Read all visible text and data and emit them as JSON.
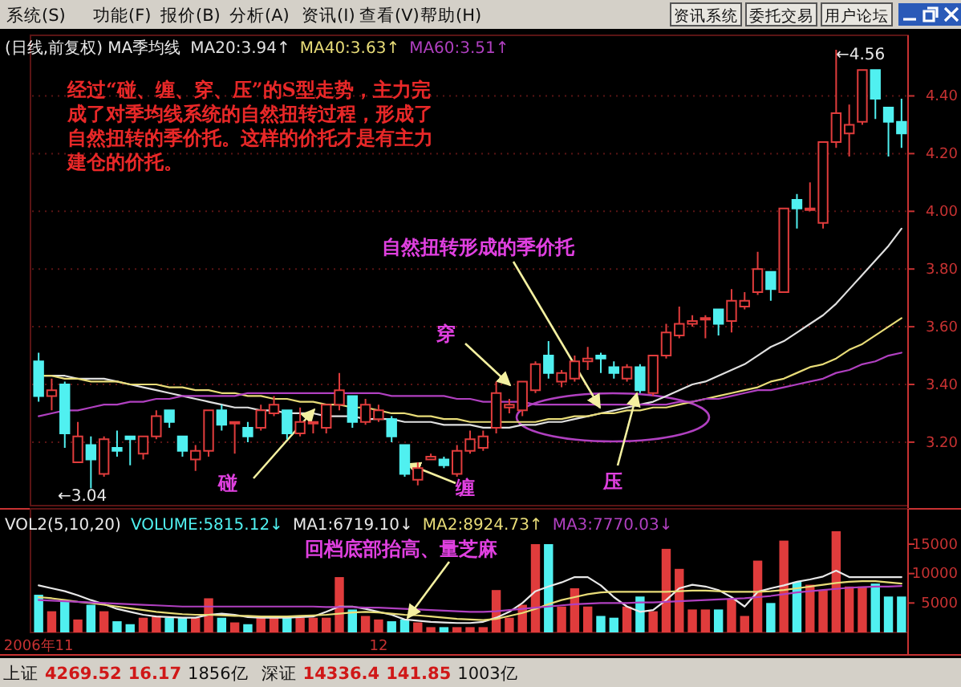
{
  "chart_data": [
    {
      "type": "other",
      "annotations": [
        "系统(S)",
        "功能(F)",
        "报价(B)",
        "分析(A)",
        "资讯(I)",
        "查看(V)",
        "帮助(H)",
        "资讯系统",
        "委托交易",
        "用户论坛"
      ]
    },
    {
      "type": "candlestick",
      "subtitle": "(日线,前复权) MA季均线",
      "legend": "top left",
      "grid": "y",
      "tick_labels": "y",
      "categories": [
        null,
        null,
        null,
        null,
        null,
        null,
        null,
        null,
        null,
        null,
        null,
        null,
        null,
        null,
        null,
        null,
        null,
        null,
        null,
        null,
        null,
        null,
        null,
        null,
        null,
        null,
        null,
        null,
        null,
        null,
        null,
        null,
        null,
        null,
        null,
        null,
        null,
        null,
        null,
        null,
        null,
        null,
        null,
        null,
        null,
        null,
        null,
        null,
        null,
        null,
        null,
        null,
        null,
        null,
        null,
        null,
        null,
        null,
        null,
        null,
        null,
        null,
        null,
        null,
        null,
        null,
        null
      ],
      "ohlc": [
        [
          3.48,
          3.51,
          3.34,
          3.36
        ],
        [
          3.36,
          3.42,
          3.31,
          3.38
        ],
        [
          3.4,
          3.41,
          3.18,
          3.23
        ],
        [
          3.13,
          3.27,
          3.13,
          3.22
        ],
        [
          3.19,
          3.22,
          3.04,
          3.14
        ],
        [
          3.09,
          3.22,
          3.08,
          3.21
        ],
        [
          3.18,
          3.24,
          3.15,
          3.17
        ],
        [
          3.22,
          3.22,
          3.12,
          3.21
        ],
        [
          3.16,
          3.22,
          3.14,
          3.22
        ],
        [
          3.22,
          3.31,
          3.21,
          3.29
        ],
        [
          3.31,
          3.31,
          3.25,
          3.27
        ],
        [
          3.22,
          3.22,
          3.15,
          3.17
        ],
        [
          3.14,
          3.19,
          3.1,
          3.17
        ],
        [
          3.17,
          3.31,
          3.15,
          3.31
        ],
        [
          3.31,
          3.33,
          3.24,
          3.26
        ],
        [
          3.27,
          3.27,
          3.16,
          3.27
        ],
        [
          3.25,
          3.27,
          3.2,
          3.22
        ],
        [
          3.25,
          3.33,
          3.24,
          3.31
        ],
        [
          3.3,
          3.36,
          3.29,
          3.33
        ],
        [
          3.31,
          3.31,
          3.21,
          3.23
        ],
        [
          3.23,
          3.32,
          3.22,
          3.27
        ],
        [
          3.27,
          3.27,
          3.23,
          3.27
        ],
        [
          3.25,
          3.33,
          3.23,
          3.33
        ],
        [
          3.33,
          3.44,
          3.31,
          3.38
        ],
        [
          3.36,
          3.36,
          3.25,
          3.27
        ],
        [
          3.27,
          3.35,
          3.26,
          3.33
        ],
        [
          3.28,
          3.33,
          3.27,
          3.31
        ],
        [
          3.28,
          3.29,
          3.2,
          3.22
        ],
        [
          3.19,
          3.19,
          3.08,
          3.09
        ],
        [
          3.07,
          3.13,
          3.05,
          3.11
        ],
        [
          3.14,
          3.16,
          3.14,
          3.15
        ],
        [
          3.14,
          3.15,
          3.11,
          3.12
        ],
        [
          3.09,
          3.19,
          3.08,
          3.17
        ],
        [
          3.17,
          3.24,
          3.16,
          3.21
        ],
        [
          3.18,
          3.24,
          3.17,
          3.22
        ],
        [
          3.25,
          3.41,
          3.23,
          3.37
        ],
        [
          3.32,
          3.35,
          3.3,
          3.33
        ],
        [
          3.31,
          3.41,
          3.29,
          3.41
        ],
        [
          3.38,
          3.48,
          3.37,
          3.47
        ],
        [
          3.5,
          3.55,
          3.42,
          3.44
        ],
        [
          3.41,
          3.45,
          3.39,
          3.44
        ],
        [
          3.42,
          3.5,
          3.41,
          3.48
        ],
        [
          3.48,
          3.53,
          3.45,
          3.49
        ],
        [
          3.5,
          3.51,
          3.44,
          3.49
        ],
        [
          3.46,
          3.48,
          3.42,
          3.44
        ],
        [
          3.42,
          3.47,
          3.41,
          3.46
        ],
        [
          3.46,
          3.47,
          3.37,
          3.38
        ],
        [
          3.37,
          3.5,
          3.36,
          3.5
        ],
        [
          3.5,
          3.61,
          3.49,
          3.58
        ],
        [
          3.57,
          3.67,
          3.56,
          3.61
        ],
        [
          3.61,
          3.64,
          3.6,
          3.62
        ],
        [
          3.63,
          3.64,
          3.56,
          3.63
        ],
        [
          3.66,
          3.66,
          3.57,
          3.61
        ],
        [
          3.62,
          3.73,
          3.58,
          3.69
        ],
        [
          3.67,
          3.72,
          3.66,
          3.69
        ],
        [
          3.72,
          3.86,
          3.71,
          3.8
        ],
        [
          3.79,
          3.79,
          3.69,
          3.73
        ],
        [
          3.72,
          4.01,
          3.72,
          4.01
        ],
        [
          4.04,
          4.06,
          3.94,
          4.01
        ],
        [
          4.01,
          4.1,
          4.0,
          4.01
        ],
        [
          3.96,
          4.24,
          3.94,
          4.24
        ],
        [
          4.24,
          4.56,
          4.22,
          4.34
        ],
        [
          4.27,
          4.37,
          4.19,
          4.3
        ],
        [
          4.31,
          4.49,
          4.3,
          4.49
        ],
        [
          4.49,
          4.49,
          4.32,
          4.39
        ],
        [
          4.36,
          4.36,
          4.19,
          4.31
        ],
        [
          4.31,
          4.39,
          4.22,
          4.27
        ]
      ],
      "colors": [
        "#50f0f0",
        "#e03c3c",
        "#50f0f0",
        "#e03c3c",
        "#50f0f0",
        "#e03c3c",
        "#50f0f0",
        "#50f0f0",
        "#e03c3c",
        "#e03c3c",
        "#50f0f0",
        "#50f0f0",
        "#e03c3c",
        "#e03c3c",
        "#50f0f0",
        "#e03c3c",
        "#50f0f0",
        "#e03c3c",
        "#e03c3c",
        "#50f0f0",
        "#e03c3c",
        "#e03c3c",
        "#e03c3c",
        "#e03c3c",
        "#50f0f0",
        "#e03c3c",
        "#e03c3c",
        "#50f0f0",
        "#50f0f0",
        "#e03c3c",
        "#e03c3c",
        "#50f0f0",
        "#e03c3c",
        "#e03c3c",
        "#e03c3c",
        "#e03c3c",
        "#e03c3c",
        "#e03c3c",
        "#e03c3c",
        "#50f0f0",
        "#e03c3c",
        "#e03c3c",
        "#e03c3c",
        "#50f0f0",
        "#50f0f0",
        "#e03c3c",
        "#50f0f0",
        "#e03c3c",
        "#e03c3c",
        "#e03c3c",
        "#e03c3c",
        "#e03c3c",
        "#50f0f0",
        "#e03c3c",
        "#e03c3c",
        "#e03c3c",
        "#50f0f0",
        "#e03c3c",
        "#50f0f0",
        "#e03c3c",
        "#e03c3c",
        "#e03c3c",
        "#e03c3c",
        "#e03c3c",
        "#50f0f0",
        "#50f0f0",
        "#50f0f0"
      ],
      "series": [
        {
          "name": "MA20:3.94↑",
          "type": "line",
          "color": "#e0e0e0",
          "values": [
            3.43,
            3.43,
            3.43,
            3.42,
            3.42,
            3.42,
            3.41,
            3.4,
            3.39,
            3.38,
            3.37,
            3.36,
            3.35,
            3.34,
            3.33,
            3.32,
            3.32,
            3.31,
            3.31,
            3.3,
            3.3,
            3.3,
            3.29,
            3.29,
            3.29,
            3.28,
            3.28,
            3.28,
            3.27,
            3.27,
            3.27,
            3.26,
            3.26,
            3.26,
            3.25,
            3.25,
            3.25,
            3.26,
            3.26,
            3.27,
            3.27,
            3.28,
            3.29,
            3.3,
            3.31,
            3.32,
            3.33,
            3.34,
            3.36,
            3.38,
            3.4,
            3.41,
            3.43,
            3.45,
            3.47,
            3.5,
            3.53,
            3.55,
            3.58,
            3.61,
            3.64,
            3.68,
            3.73,
            3.78,
            3.83,
            3.88,
            3.94
          ]
        },
        {
          "name": "MA40:3.63↑",
          "type": "line",
          "color": "#e8dc78",
          "values": [
            3.43,
            3.43,
            3.42,
            3.42,
            3.41,
            3.41,
            3.41,
            3.4,
            3.4,
            3.4,
            3.39,
            3.39,
            3.38,
            3.38,
            3.37,
            3.37,
            3.36,
            3.36,
            3.35,
            3.35,
            3.34,
            3.34,
            3.33,
            3.33,
            3.32,
            3.32,
            3.31,
            3.3,
            3.3,
            3.29,
            3.29,
            3.28,
            3.28,
            3.27,
            3.27,
            3.27,
            3.27,
            3.27,
            3.27,
            3.28,
            3.28,
            3.29,
            3.29,
            3.3,
            3.3,
            3.31,
            3.31,
            3.32,
            3.32,
            3.33,
            3.34,
            3.35,
            3.36,
            3.37,
            3.38,
            3.39,
            3.41,
            3.42,
            3.44,
            3.46,
            3.47,
            3.49,
            3.52,
            3.54,
            3.57,
            3.6,
            3.63
          ]
        },
        {
          "name": "MA60:3.51↑",
          "type": "line",
          "color": "#b040c0",
          "values": [
            3.29,
            3.3,
            3.31,
            3.31,
            3.32,
            3.33,
            3.33,
            3.34,
            3.34,
            3.35,
            3.35,
            3.36,
            3.36,
            3.36,
            3.36,
            3.36,
            3.37,
            3.37,
            3.37,
            3.37,
            3.37,
            3.37,
            3.37,
            3.37,
            3.37,
            3.37,
            3.37,
            3.36,
            3.36,
            3.36,
            3.36,
            3.36,
            3.35,
            3.35,
            3.34,
            3.34,
            3.34,
            3.34,
            3.33,
            3.33,
            3.33,
            3.33,
            3.33,
            3.33,
            3.33,
            3.33,
            3.33,
            3.33,
            3.33,
            3.34,
            3.34,
            3.35,
            3.35,
            3.36,
            3.37,
            3.38,
            3.38,
            3.39,
            3.4,
            3.41,
            3.42,
            3.44,
            3.45,
            3.47,
            3.48,
            3.5,
            3.51
          ]
        }
      ],
      "ylim": [
        2.98,
        4.61
      ],
      "yticks": [
        {
          "value": 3.2,
          "label": "3.20"
        },
        {
          "value": 3.4,
          "label": "3.40"
        },
        {
          "value": 3.6,
          "label": "3.60"
        },
        {
          "value": 3.8,
          "label": "3.80"
        },
        {
          "value": 4.0,
          "label": "4.00"
        },
        {
          "value": 4.2,
          "label": "4.20"
        },
        {
          "value": 4.4,
          "label": "4.40"
        }
      ],
      "annotations": [
        "经过“碰、缠、穿、压”的S型走势，主力完成了对季均线系统的自然扭转过程，形成了自然扭转的季价托。这样的价托才是有主力建仓的价托。",
        "自然扭转形成的季价托",
        "穿",
        "碰",
        "缠",
        "压",
        "←3.04",
        "←4.56"
      ]
    },
    {
      "type": "bar",
      "subtitle": "VOL2(5,10,20)",
      "legend": "top left",
      "categories": [
        "2006年11",
        null,
        null,
        null,
        null,
        null,
        null,
        null,
        null,
        null,
        null,
        null,
        null,
        null,
        null,
        null,
        null,
        null,
        null,
        null,
        null,
        null,
        null,
        null,
        null,
        null,
        "12",
        null,
        null,
        null,
        null,
        null,
        null,
        null,
        null,
        null,
        null,
        null,
        null,
        null,
        null,
        null,
        null,
        null,
        null,
        null,
        null,
        null,
        null,
        null,
        null,
        null,
        null,
        null,
        null,
        null,
        null,
        null,
        null,
        null,
        null,
        null,
        null,
        null,
        null,
        null,
        null
      ],
      "series": [
        {
          "name": "VOLUME:5815.12↓",
          "type": "bar",
          "colors": [
            "#50f0f0",
            "#e03c3c",
            "#50f0f0",
            "#e03c3c",
            "#50f0f0",
            "#e03c3c",
            "#50f0f0",
            "#50f0f0",
            "#e03c3c",
            "#e03c3c",
            "#50f0f0",
            "#50f0f0",
            "#e03c3c",
            "#e03c3c",
            "#50f0f0",
            "#e03c3c",
            "#50f0f0",
            "#e03c3c",
            "#e03c3c",
            "#50f0f0",
            "#e03c3c",
            "#e03c3c",
            "#e03c3c",
            "#e03c3c",
            "#50f0f0",
            "#e03c3c",
            "#e03c3c",
            "#50f0f0",
            "#50f0f0",
            "#e03c3c",
            "#e03c3c",
            "#50f0f0",
            "#e03c3c",
            "#e03c3c",
            "#e03c3c",
            "#e03c3c",
            "#e03c3c",
            "#e03c3c",
            "#e03c3c",
            "#50f0f0",
            "#e03c3c",
            "#e03c3c",
            "#e03c3c",
            "#50f0f0",
            "#50f0f0",
            "#e03c3c",
            "#50f0f0",
            "#e03c3c",
            "#e03c3c",
            "#e03c3c",
            "#e03c3c",
            "#e03c3c",
            "#50f0f0",
            "#e03c3c",
            "#e03c3c",
            "#e03c3c",
            "#50f0f0",
            "#e03c3c",
            "#50f0f0",
            "#e03c3c",
            "#e03c3c",
            "#e03c3c",
            "#e03c3c",
            "#e03c3c",
            "#50f0f0",
            "#50f0f0",
            "#50f0f0"
          ],
          "values": [
            6400,
            3600,
            5300,
            2200,
            4700,
            3600,
            1900,
            1400,
            2500,
            2800,
            2500,
            2500,
            2500,
            5800,
            2500,
            1700,
            1400,
            2500,
            2500,
            2500,
            2500,
            2500,
            2500,
            9400,
            3900,
            2800,
            2200,
            1900,
            2200,
            1700,
            900,
            900,
            900,
            900,
            900,
            7200,
            2500,
            4700,
            15000,
            15000,
            4400,
            7500,
            4400,
            2800,
            2500,
            4400,
            6100,
            3600,
            14200,
            10800,
            3900,
            3900,
            3900,
            5600,
            2800,
            12200,
            5000,
            15600,
            8600,
            8100,
            7200,
            17200,
            7800,
            7800,
            8300,
            6100,
            6100
          ]
        },
        {
          "name": "MA1:6719.10↓",
          "type": "line",
          "color": "#e8e8e8",
          "values": [
            8000,
            7500,
            7000,
            6300,
            5500,
            4800,
            4000,
            3500,
            3000,
            2700,
            2600,
            2500,
            2500,
            3000,
            3200,
            3000,
            2600,
            2500,
            2500,
            2500,
            2600,
            2700,
            3500,
            4400,
            4400,
            4000,
            3500,
            3000,
            2200,
            2000,
            1800,
            1700,
            1600,
            1600,
            1800,
            2500,
            3500,
            5000,
            7000,
            7800,
            8500,
            9400,
            9400,
            8000,
            6000,
            4400,
            3500,
            3800,
            5500,
            7500,
            8100,
            7800,
            7200,
            6000,
            4400,
            6900,
            7500,
            8000,
            8600,
            9000,
            9500,
            10500,
            9400,
            9400,
            9400,
            9400,
            9400
          ]
        },
        {
          "name": "MA2:8924.73↑",
          "type": "line",
          "color": "#e8dc78",
          "values": [
            6000,
            5800,
            5500,
            5200,
            5000,
            4700,
            4400,
            4100,
            3800,
            3500,
            3300,
            3100,
            3000,
            3000,
            2900,
            2800,
            2800,
            2700,
            2700,
            2700,
            2800,
            2900,
            3000,
            3200,
            3400,
            3500,
            3400,
            3200,
            3000,
            2900,
            2700,
            2500,
            2300,
            2200,
            2100,
            2300,
            2800,
            3300,
            4000,
            4800,
            5500,
            6000,
            6500,
            6800,
            6900,
            6900,
            6900,
            6900,
            6900,
            7000,
            7100,
            7100,
            7000,
            6900,
            6900,
            6900,
            7000,
            7200,
            7500,
            7800,
            8100,
            8400,
            8600,
            8700,
            8700,
            8500,
            8300
          ]
        },
        {
          "name": "MA3:7770.03↓",
          "type": "line",
          "color": "#b040c0",
          "values": [
            5500,
            5400,
            5300,
            5200,
            5100,
            5000,
            4900,
            4800,
            4700,
            4600,
            4500,
            4400,
            4400,
            4400,
            4400,
            4400,
            4400,
            4400,
            4400,
            4400,
            4400,
            4400,
            4300,
            4300,
            4300,
            4200,
            4200,
            4100,
            4000,
            3900,
            3800,
            3700,
            3600,
            3500,
            3500,
            3600,
            3800,
            4000,
            4200,
            4400,
            4600,
            4800,
            4900,
            5000,
            5000,
            5000,
            5100,
            5100,
            5200,
            5300,
            5400,
            5500,
            5600,
            5700,
            5800,
            6000,
            6200,
            6500,
            6800,
            7000,
            7200,
            7400,
            7600,
            7700,
            7800,
            7800,
            7900
          ]
        }
      ],
      "ylim": [
        0,
        21000
      ],
      "yticks": [
        5000,
        10000,
        15000
      ],
      "annotations": [
        "回档底部抬高、量芝麻"
      ]
    },
    {
      "type": "other",
      "annotations": [
        "上证",
        "4269.52",
        "16.17",
        "1856亿",
        "深证",
        "14336.4",
        "141.85",
        "1003亿"
      ]
    }
  ]
}
